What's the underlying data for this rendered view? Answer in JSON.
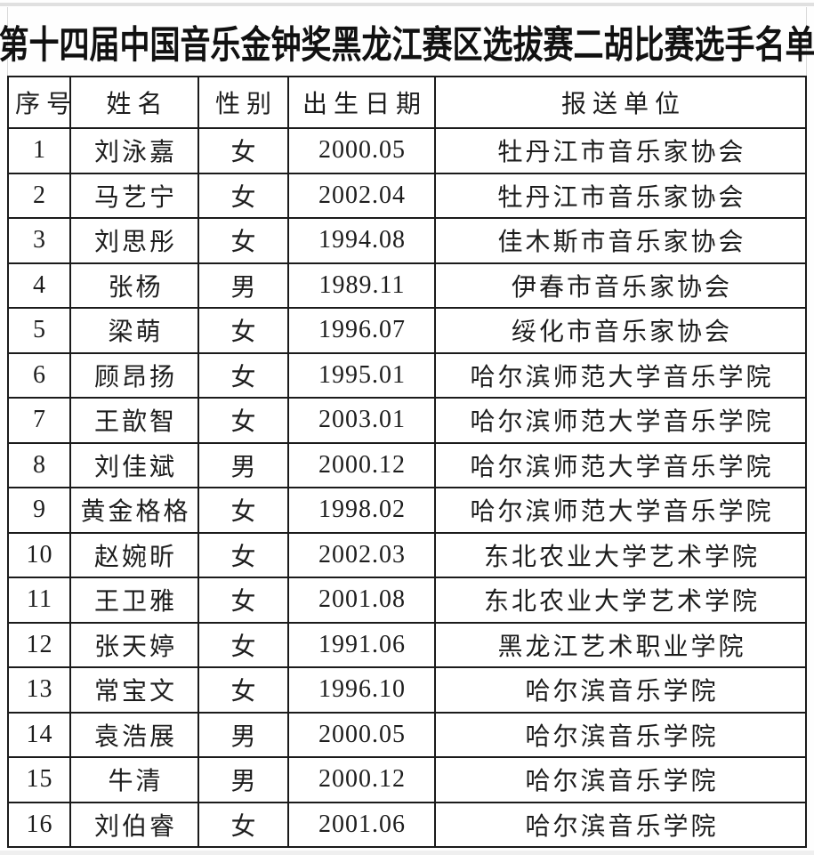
{
  "title": "第十四届中国音乐金钟奖黑龙江赛区选拔赛二胡比赛选手名单",
  "table": {
    "headers": [
      "序号",
      "姓名",
      "性别",
      "出生日期",
      "报送单位"
    ],
    "rows": [
      [
        "1",
        "刘泳嘉",
        "女",
        "2000.05",
        "牡丹江市音乐家协会"
      ],
      [
        "2",
        "马艺宁",
        "女",
        "2002.04",
        "牡丹江市音乐家协会"
      ],
      [
        "3",
        "刘思彤",
        "女",
        "1994.08",
        "佳木斯市音乐家协会"
      ],
      [
        "4",
        "张杨",
        "男",
        "1989.11",
        "伊春市音乐家协会"
      ],
      [
        "5",
        "梁萌",
        "女",
        "1996.07",
        "绥化市音乐家协会"
      ],
      [
        "6",
        "顾昂扬",
        "女",
        "1995.01",
        "哈尔滨师范大学音乐学院"
      ],
      [
        "7",
        "王歆智",
        "女",
        "2003.01",
        "哈尔滨师范大学音乐学院"
      ],
      [
        "8",
        "刘佳斌",
        "男",
        "2000.12",
        "哈尔滨师范大学音乐学院"
      ],
      [
        "9",
        "黄金格格",
        "女",
        "1998.02",
        "哈尔滨师范大学音乐学院"
      ],
      [
        "10",
        "赵婉昕",
        "女",
        "2002.03",
        "东北农业大学艺术学院"
      ],
      [
        "11",
        "王卫雅",
        "女",
        "2001.08",
        "东北农业大学艺术学院"
      ],
      [
        "12",
        "张天婷",
        "女",
        "1991.06",
        "黑龙江艺术职业学院"
      ],
      [
        "13",
        "常宝文",
        "女",
        "1996.10",
        "哈尔滨音乐学院"
      ],
      [
        "14",
        "袁浩展",
        "男",
        "2000.05",
        "哈尔滨音乐学院"
      ],
      [
        "15",
        "牛清",
        "男",
        "2000.12",
        "哈尔滨音乐学院"
      ],
      [
        "16",
        "刘伯睿",
        "女",
        "2001.06",
        "哈尔滨音乐学院"
      ]
    ]
  },
  "colors": {
    "text": "#1d1d1d",
    "border": "#1b1b1b",
    "background": "#ffffff",
    "scan_edge": "#e0e0e0"
  }
}
